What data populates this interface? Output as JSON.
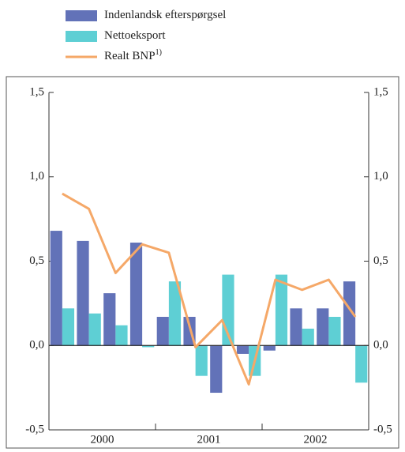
{
  "chart_data": {
    "type": "bar-line",
    "categories": [
      null,
      null,
      null,
      null,
      null,
      null,
      null,
      null,
      null,
      null,
      null,
      null
    ],
    "groups": [
      "2000",
      "2001",
      "2002"
    ],
    "series": [
      {
        "name": "Indenlandsk efterspørgsel",
        "type": "bar",
        "color": "#6272b8",
        "values": [
          0.68,
          0.62,
          0.31,
          0.61,
          0.17,
          0.17,
          -0.28,
          -0.05,
          -0.03,
          0.22,
          0.22,
          0.38
        ]
      },
      {
        "name": "Nettoeksport",
        "type": "bar",
        "color": "#5ecfd4",
        "values": [
          0.22,
          0.19,
          0.12,
          -0.01,
          0.38,
          -0.18,
          0.42,
          -0.18,
          0.42,
          0.1,
          0.17,
          -0.22
        ]
      },
      {
        "name": "Realt BNP",
        "name_note": "1)",
        "type": "line",
        "color": "#f5a868",
        "values": [
          0.9,
          0.81,
          0.43,
          0.6,
          0.55,
          -0.01,
          0.15,
          -0.23,
          0.39,
          0.33,
          0.39,
          0.17
        ]
      }
    ],
    "ylim": [
      -0.5,
      1.5
    ],
    "yticks": [
      {
        "value": -0.5,
        "label": "-0,5"
      },
      {
        "value": 0,
        "label": "0,0"
      },
      {
        "value": 0.5,
        "label": "0,5"
      },
      {
        "value": 1,
        "label": "1,0"
      },
      {
        "value": 1.5,
        "label": "1,5"
      }
    ],
    "y2lim": [
      -0.5,
      1.5
    ],
    "y2ticks": [
      {
        "value": -0.5,
        "label": "-0,5"
      },
      {
        "value": 0,
        "label": "0,0"
      },
      {
        "value": 0.5,
        "label": "0,5"
      },
      {
        "value": 1,
        "label": "1,0"
      },
      {
        "value": 1.5,
        "label": "1,5"
      }
    ]
  }
}
